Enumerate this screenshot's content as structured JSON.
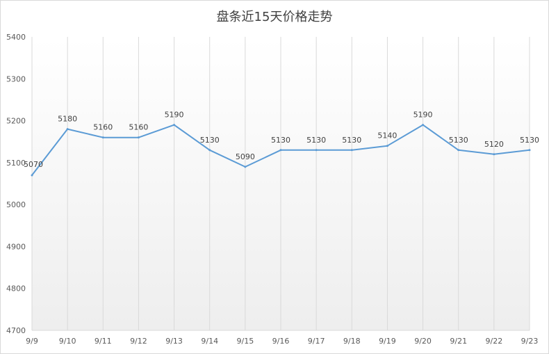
{
  "chart_data": {
    "type": "line",
    "title": "盘条近15天价格走势",
    "xlabel": "",
    "ylabel": "",
    "categories": [
      "9/9",
      "9/10",
      "9/11",
      "9/12",
      "9/13",
      "9/14",
      "9/15",
      "9/16",
      "9/17",
      "9/18",
      "9/19",
      "9/20",
      "9/21",
      "9/22",
      "9/23"
    ],
    "series": [
      {
        "values": [
          5070,
          5180,
          5160,
          5160,
          5190,
          5130,
          5090,
          5130,
          5130,
          5130,
          5140,
          5190,
          5130,
          5120,
          5130
        ]
      }
    ],
    "ylim": [
      4700,
      5400
    ],
    "yticks": [
      4700,
      4800,
      4900,
      5000,
      5100,
      5200,
      5300,
      5400
    ],
    "grid": "vertical",
    "legend": "none",
    "data_labels": true,
    "colors": {
      "line": "#5b9bd5",
      "grid": "#d9d9d9",
      "fill_top": "#ffffff",
      "fill_bottom": "#eeeeee"
    }
  }
}
